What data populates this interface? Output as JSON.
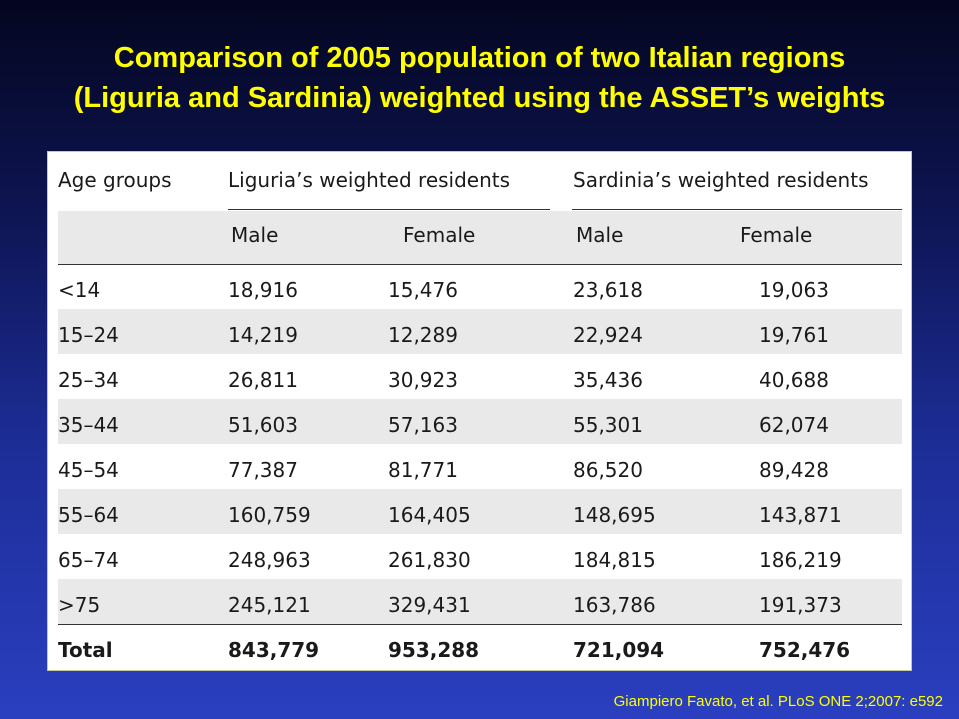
{
  "slide": {
    "title_line1": "Comparison of 2005 population of two Italian regions",
    "title_line2": "(Liguria and Sardinia) weighted using the ASSET’s weights",
    "citation": "Giampiero Favato, et al. PLoS ONE 2;2007: e592"
  },
  "table": {
    "header_age": "Age groups",
    "header_liguria": "Liguria’s weighted residents",
    "header_sardinia": "Sardinia’s weighted residents",
    "sub_male_1": "Male",
    "sub_female_1": "Female",
    "sub_male_2": "Male",
    "sub_female_2": "Female",
    "rows": [
      {
        "age": "<14",
        "lig_m": "18,916",
        "lig_f": "15,476",
        "sar_m": "23,618",
        "sar_f": "19,063"
      },
      {
        "age": "15–24",
        "lig_m": "14,219",
        "lig_f": "12,289",
        "sar_m": "22,924",
        "sar_f": "19,761"
      },
      {
        "age": "25–34",
        "lig_m": "26,811",
        "lig_f": "30,923",
        "sar_m": "35,436",
        "sar_f": "40,688"
      },
      {
        "age": "35–44",
        "lig_m": "51,603",
        "lig_f": "57,163",
        "sar_m": "55,301",
        "sar_f": "62,074"
      },
      {
        "age": "45–54",
        "lig_m": "77,387",
        "lig_f": "81,771",
        "sar_m": "86,520",
        "sar_f": "89,428"
      },
      {
        "age": "55–64",
        "lig_m": "160,759",
        "lig_f": "164,405",
        "sar_m": "148,695",
        "sar_f": "143,871"
      },
      {
        "age": "65–74",
        "lig_m": "248,963",
        "lig_f": "261,830",
        "sar_m": "184,815",
        "sar_f": "186,219"
      },
      {
        "age": ">75",
        "lig_m": "245,121",
        "lig_f": "329,431",
        "sar_m": "163,786",
        "sar_f": "191,373"
      }
    ],
    "total": {
      "age": "Total",
      "lig_m": "843,779",
      "lig_f": "953,288",
      "sar_m": "721,094",
      "sar_f": "752,476"
    }
  }
}
